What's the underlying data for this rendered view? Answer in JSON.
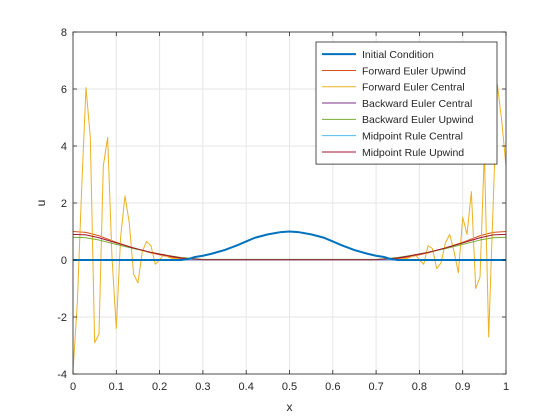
{
  "chart_data": {
    "type": "line",
    "title": "",
    "xlabel": "x",
    "ylabel": "u",
    "xlim": [
      0,
      1
    ],
    "ylim": [
      -4,
      8
    ],
    "xticks": [
      "0",
      "0.1",
      "0.2",
      "0.3",
      "0.4",
      "0.5",
      "0.6",
      "0.7",
      "0.8",
      "0.9",
      "1"
    ],
    "yticks": [
      "-4",
      "-2",
      "0",
      "2",
      "4",
      "6",
      "8"
    ],
    "grid": true,
    "legend_position": "top-right",
    "series": [
      {
        "name": "Initial Condition",
        "color": "#0072BD",
        "width": 2,
        "x": [
          0,
          0.25,
          0.26,
          0.27,
          0.28,
          0.3,
          0.32,
          0.35,
          0.38,
          0.4,
          0.42,
          0.45,
          0.48,
          0.5,
          0.52,
          0.55,
          0.58,
          0.6,
          0.62,
          0.65,
          0.68,
          0.7,
          0.72,
          0.73,
          0.74,
          0.75,
          1
        ],
        "y": [
          0,
          0,
          0.02,
          0.05,
          0.1,
          0.15,
          0.22,
          0.35,
          0.52,
          0.65,
          0.78,
          0.9,
          0.98,
          1.0,
          0.98,
          0.9,
          0.78,
          0.65,
          0.52,
          0.35,
          0.22,
          0.15,
          0.1,
          0.05,
          0.02,
          0,
          0
        ]
      },
      {
        "name": "Forward Euler Upwind",
        "color": "#D95319",
        "width": 1,
        "x": [
          0,
          0.03,
          0.06,
          0.1,
          0.14,
          0.18,
          0.22,
          0.25,
          0.28,
          0.72,
          0.75,
          0.78,
          0.82,
          0.86,
          0.9,
          0.94,
          0.97,
          1
        ],
        "y": [
          1.0,
          0.97,
          0.85,
          0.62,
          0.42,
          0.25,
          0.12,
          0.05,
          0,
          0,
          0.05,
          0.12,
          0.25,
          0.42,
          0.62,
          0.85,
          0.97,
          1.0
        ]
      },
      {
        "name": "Forward Euler Central",
        "color": "#EDB120",
        "width": 1,
        "x": [
          0,
          0.01,
          0.02,
          0.03,
          0.04,
          0.05,
          0.06,
          0.07,
          0.08,
          0.09,
          0.1,
          0.11,
          0.12,
          0.13,
          0.14,
          0.15,
          0.16,
          0.17,
          0.18,
          0.19,
          0.2,
          0.21,
          0.22,
          0.23,
          0.24,
          0.25,
          0.75,
          0.76,
          0.77,
          0.78,
          0.79,
          0.8,
          0.81,
          0.82,
          0.83,
          0.84,
          0.85,
          0.86,
          0.87,
          0.88,
          0.89,
          0.9,
          0.91,
          0.92,
          0.93,
          0.94,
          0.95,
          0.96,
          0.97,
          0.98,
          0.99,
          1
        ],
        "y": [
          -3.9,
          -1.5,
          2.5,
          6.05,
          4.3,
          -2.9,
          -2.6,
          3.3,
          4.3,
          0.1,
          -2.4,
          0.8,
          2.25,
          1.3,
          -0.5,
          -0.8,
          0.3,
          0.65,
          0.5,
          -0.15,
          0,
          0.2,
          0.1,
          0.05,
          0.05,
          0,
          0,
          0.05,
          0.05,
          0.1,
          0.2,
          0,
          -0.15,
          0.5,
          0.4,
          -0.3,
          -0.1,
          0.6,
          0.9,
          0.3,
          -0.45,
          1.5,
          0.9,
          2.4,
          -1.0,
          -0.6,
          3.8,
          -2.7,
          1.8,
          6.15,
          4.9,
          3.3
        ]
      },
      {
        "name": "Backward Euler Central",
        "color": "#7E2F8E",
        "width": 1,
        "x": [
          0,
          1
        ],
        "y": [
          0,
          0
        ]
      },
      {
        "name": "Backward Euler Upwind",
        "color": "#77AC30",
        "width": 1,
        "x": [
          0,
          0.03,
          0.06,
          0.1,
          0.14,
          0.18,
          0.22,
          0.25,
          0.3,
          0.7,
          0.75,
          0.78,
          0.82,
          0.86,
          0.9,
          0.94,
          0.97,
          1
        ],
        "y": [
          0.8,
          0.78,
          0.7,
          0.55,
          0.4,
          0.27,
          0.16,
          0.09,
          0.02,
          0.02,
          0.09,
          0.16,
          0.27,
          0.4,
          0.55,
          0.7,
          0.78,
          0.8
        ]
      },
      {
        "name": "Midpoint Rule Central",
        "color": "#4DBEEE",
        "width": 1,
        "x": [
          0,
          1
        ],
        "y": [
          0.01,
          0.01
        ]
      },
      {
        "name": "Midpoint Rule Upwind",
        "color": "#A2142F",
        "width": 1,
        "x": [
          0,
          0.03,
          0.06,
          0.1,
          0.14,
          0.18,
          0.22,
          0.25,
          0.3,
          0.7,
          0.75,
          0.78,
          0.82,
          0.86,
          0.9,
          0.94,
          0.97,
          1
        ],
        "y": [
          0.9,
          0.88,
          0.78,
          0.6,
          0.42,
          0.27,
          0.15,
          0.07,
          0.01,
          0.01,
          0.07,
          0.15,
          0.27,
          0.42,
          0.6,
          0.78,
          0.88,
          0.9
        ]
      }
    ]
  }
}
